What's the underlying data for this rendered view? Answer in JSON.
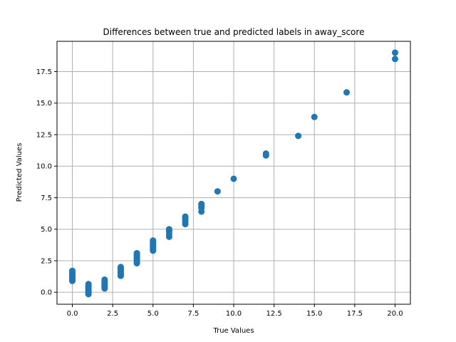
{
  "chart_data": {
    "type": "scatter",
    "title": "Differences between true and predicted labels in away_score",
    "xlabel": "True Values",
    "ylabel": "Predicted Values",
    "xlim": [
      -0.95,
      20.95
    ],
    "ylim": [
      -0.95,
      19.9
    ],
    "xticks": [
      0.0,
      2.5,
      5.0,
      7.5,
      10.0,
      12.5,
      15.0,
      17.5,
      20.0
    ],
    "xtick_labels": [
      "0.0",
      "2.5",
      "5.0",
      "7.5",
      "10.0",
      "12.5",
      "15.0",
      "17.5",
      "20.0"
    ],
    "yticks": [
      0.0,
      2.5,
      5.0,
      7.5,
      10.0,
      12.5,
      15.0,
      17.5
    ],
    "ytick_labels": [
      "0.0",
      "2.5",
      "5.0",
      "7.5",
      "10.0",
      "12.5",
      "15.0",
      "17.5"
    ],
    "grid": true,
    "color": "#1f77b4",
    "points": [
      [
        0,
        0.9
      ],
      [
        0,
        1.0
      ],
      [
        0,
        1.1
      ],
      [
        0,
        1.2
      ],
      [
        0,
        1.3
      ],
      [
        0,
        1.4
      ],
      [
        0,
        1.5
      ],
      [
        0,
        1.6
      ],
      [
        0,
        1.7
      ],
      [
        1,
        -0.15
      ],
      [
        1,
        -0.05
      ],
      [
        1,
        0.05
      ],
      [
        1,
        0.15
      ],
      [
        1,
        0.25
      ],
      [
        1,
        0.35
      ],
      [
        1,
        0.45
      ],
      [
        1,
        0.55
      ],
      [
        1,
        0.65
      ],
      [
        2,
        0.3
      ],
      [
        2,
        0.4
      ],
      [
        2,
        0.5
      ],
      [
        2,
        0.6
      ],
      [
        2,
        0.7
      ],
      [
        2,
        0.8
      ],
      [
        2,
        0.9
      ],
      [
        2,
        1.0
      ],
      [
        3,
        1.3
      ],
      [
        3,
        1.4
      ],
      [
        3,
        1.5
      ],
      [
        3,
        1.6
      ],
      [
        3,
        1.7
      ],
      [
        3,
        1.8
      ],
      [
        3,
        1.9
      ],
      [
        3,
        2.0
      ],
      [
        4,
        2.3
      ],
      [
        4,
        2.4
      ],
      [
        4,
        2.5
      ],
      [
        4,
        2.6
      ],
      [
        4,
        2.7
      ],
      [
        4,
        2.8
      ],
      [
        4,
        2.9
      ],
      [
        4,
        3.0
      ],
      [
        4,
        3.1
      ],
      [
        5,
        3.3
      ],
      [
        5,
        3.4
      ],
      [
        5,
        3.5
      ],
      [
        5,
        3.6
      ],
      [
        5,
        3.7
      ],
      [
        5,
        3.8
      ],
      [
        5,
        3.9
      ],
      [
        5,
        4.0
      ],
      [
        5,
        4.1
      ],
      [
        6,
        4.4
      ],
      [
        6,
        4.6
      ],
      [
        6,
        4.8
      ],
      [
        6,
        4.9
      ],
      [
        6,
        5.0
      ],
      [
        7,
        5.4
      ],
      [
        7,
        5.6
      ],
      [
        7,
        5.8
      ],
      [
        7,
        5.9
      ],
      [
        7,
        6.0
      ],
      [
        8,
        6.4
      ],
      [
        8,
        6.7
      ],
      [
        8,
        6.9
      ],
      [
        8,
        7.0
      ],
      [
        9,
        8.0
      ],
      [
        10,
        9.0
      ],
      [
        12,
        10.85
      ],
      [
        12,
        11.0
      ],
      [
        14,
        12.4
      ],
      [
        15,
        13.9
      ],
      [
        17,
        15.85
      ],
      [
        20,
        18.5
      ],
      [
        20,
        19.0
      ]
    ]
  }
}
